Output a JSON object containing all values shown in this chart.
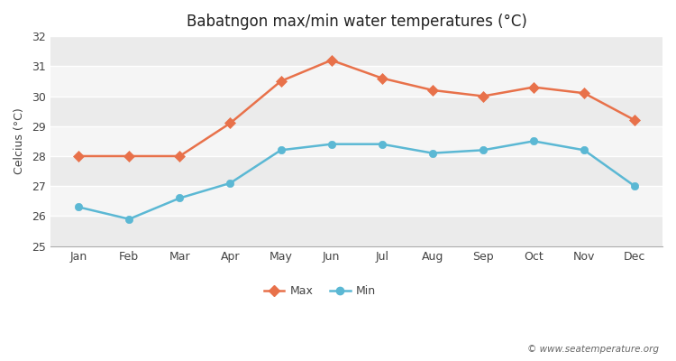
{
  "title": "Babatngon max/min water temperatures (°C)",
  "ylabel": "Celcius (°C)",
  "months": [
    "Jan",
    "Feb",
    "Mar",
    "Apr",
    "May",
    "Jun",
    "Jul",
    "Aug",
    "Sep",
    "Oct",
    "Nov",
    "Dec"
  ],
  "max_values": [
    28.0,
    28.0,
    28.0,
    29.1,
    30.5,
    31.2,
    30.6,
    30.2,
    30.0,
    30.3,
    30.1,
    29.2
  ],
  "min_values": [
    26.3,
    25.9,
    26.6,
    27.1,
    28.2,
    28.4,
    28.4,
    28.1,
    28.2,
    28.5,
    28.2,
    27.0
  ],
  "ylim": [
    25,
    32
  ],
  "yticks": [
    25,
    26,
    27,
    28,
    29,
    30,
    31,
    32
  ],
  "max_color": "#e8714a",
  "min_color": "#5bb8d4",
  "bg_color": "#ffffff",
  "plot_bg_light": "#f5f5f5",
  "plot_bg_dark": "#e8e8e8",
  "grid_color": "#ffffff",
  "watermark": "© www.seatemperature.org",
  "legend_max": "Max",
  "legend_min": "Min",
  "band_colors": [
    "#ebebeb",
    "#f5f5f5",
    "#ebebeb",
    "#f5f5f5",
    "#ebebeb",
    "#f5f5f5",
    "#ebebeb"
  ]
}
